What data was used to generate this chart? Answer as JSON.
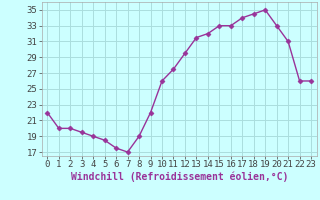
{
  "x": [
    0,
    1,
    2,
    3,
    4,
    5,
    6,
    7,
    8,
    9,
    10,
    11,
    12,
    13,
    14,
    15,
    16,
    17,
    18,
    19,
    20,
    21,
    22,
    23
  ],
  "y": [
    22,
    20,
    20,
    19.5,
    19,
    18.5,
    17.5,
    17,
    19,
    22,
    26,
    27.5,
    29.5,
    31.5,
    32,
    33,
    33,
    34,
    34.5,
    35,
    33,
    31,
    26,
    26
  ],
  "line_color": "#993399",
  "marker": "D",
  "marker_size": 2.5,
  "bg_color": "#ccffff",
  "grid_color": "#aadddd",
  "xlabel": "Windchill (Refroidissement éolien,°C)",
  "xlabel_fontsize": 7,
  "tick_fontsize": 6.5,
  "ylim": [
    16.5,
    36
  ],
  "yticks": [
    17,
    19,
    21,
    23,
    25,
    27,
    29,
    31,
    33,
    35
  ],
  "xticks": [
    0,
    1,
    2,
    3,
    4,
    5,
    6,
    7,
    8,
    9,
    10,
    11,
    12,
    13,
    14,
    15,
    16,
    17,
    18,
    19,
    20,
    21,
    22,
    23
  ],
  "xlim": [
    -0.5,
    23.5
  ]
}
